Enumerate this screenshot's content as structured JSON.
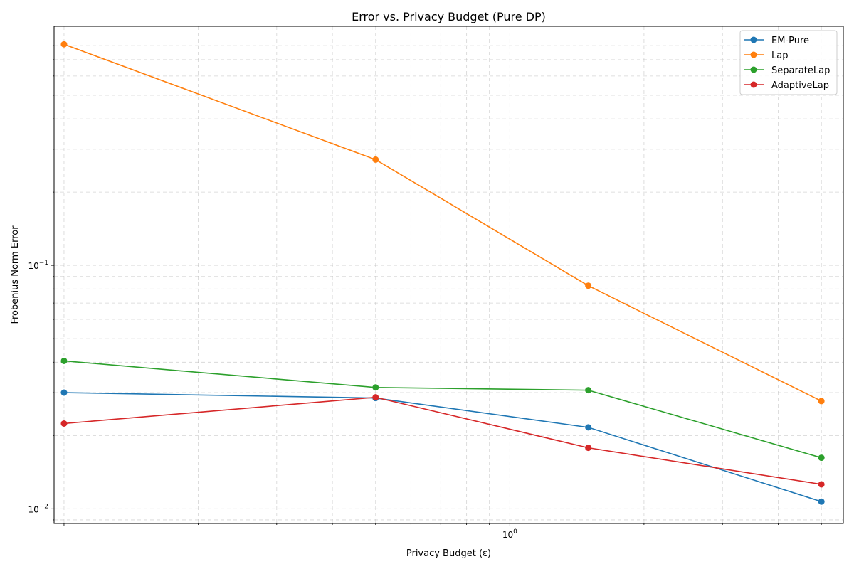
{
  "chart_data": {
    "type": "line",
    "title": "Error vs. Privacy Budget (Pure DP)",
    "xlabel": "Privacy Budget (ε)",
    "ylabel": "Frobenius Norm Error",
    "xscale": "log",
    "yscale": "log",
    "xlim": [
      0.095,
      5.6
    ],
    "ylim": [
      0.0087,
      0.96
    ],
    "x": [
      0.1,
      0.5,
      1.5,
      5.0
    ],
    "x_tick_labels": [
      {
        "value": 1,
        "base": "10",
        "exp": "0"
      }
    ],
    "y_tick_labels": [
      {
        "value": 0.1,
        "base": "10",
        "exp": "−1"
      },
      {
        "value": 0.01,
        "base": "10",
        "exp": "−2"
      }
    ],
    "grid": true,
    "legend_position": "top-right",
    "series": [
      {
        "name": "EM-Pure",
        "color": "#1f77b4",
        "values": [
          0.03,
          0.0285,
          0.0216,
          0.0107
        ]
      },
      {
        "name": "Lap",
        "color": "#ff7f0e",
        "values": [
          0.81,
          0.272,
          0.0825,
          0.0277
        ]
      },
      {
        "name": "SeparateLap",
        "color": "#2ca02c",
        "values": [
          0.0405,
          0.0315,
          0.0307,
          0.0162
        ]
      },
      {
        "name": "AdaptiveLap",
        "color": "#d62728",
        "values": [
          0.0224,
          0.0287,
          0.0178,
          0.0126
        ]
      }
    ]
  }
}
